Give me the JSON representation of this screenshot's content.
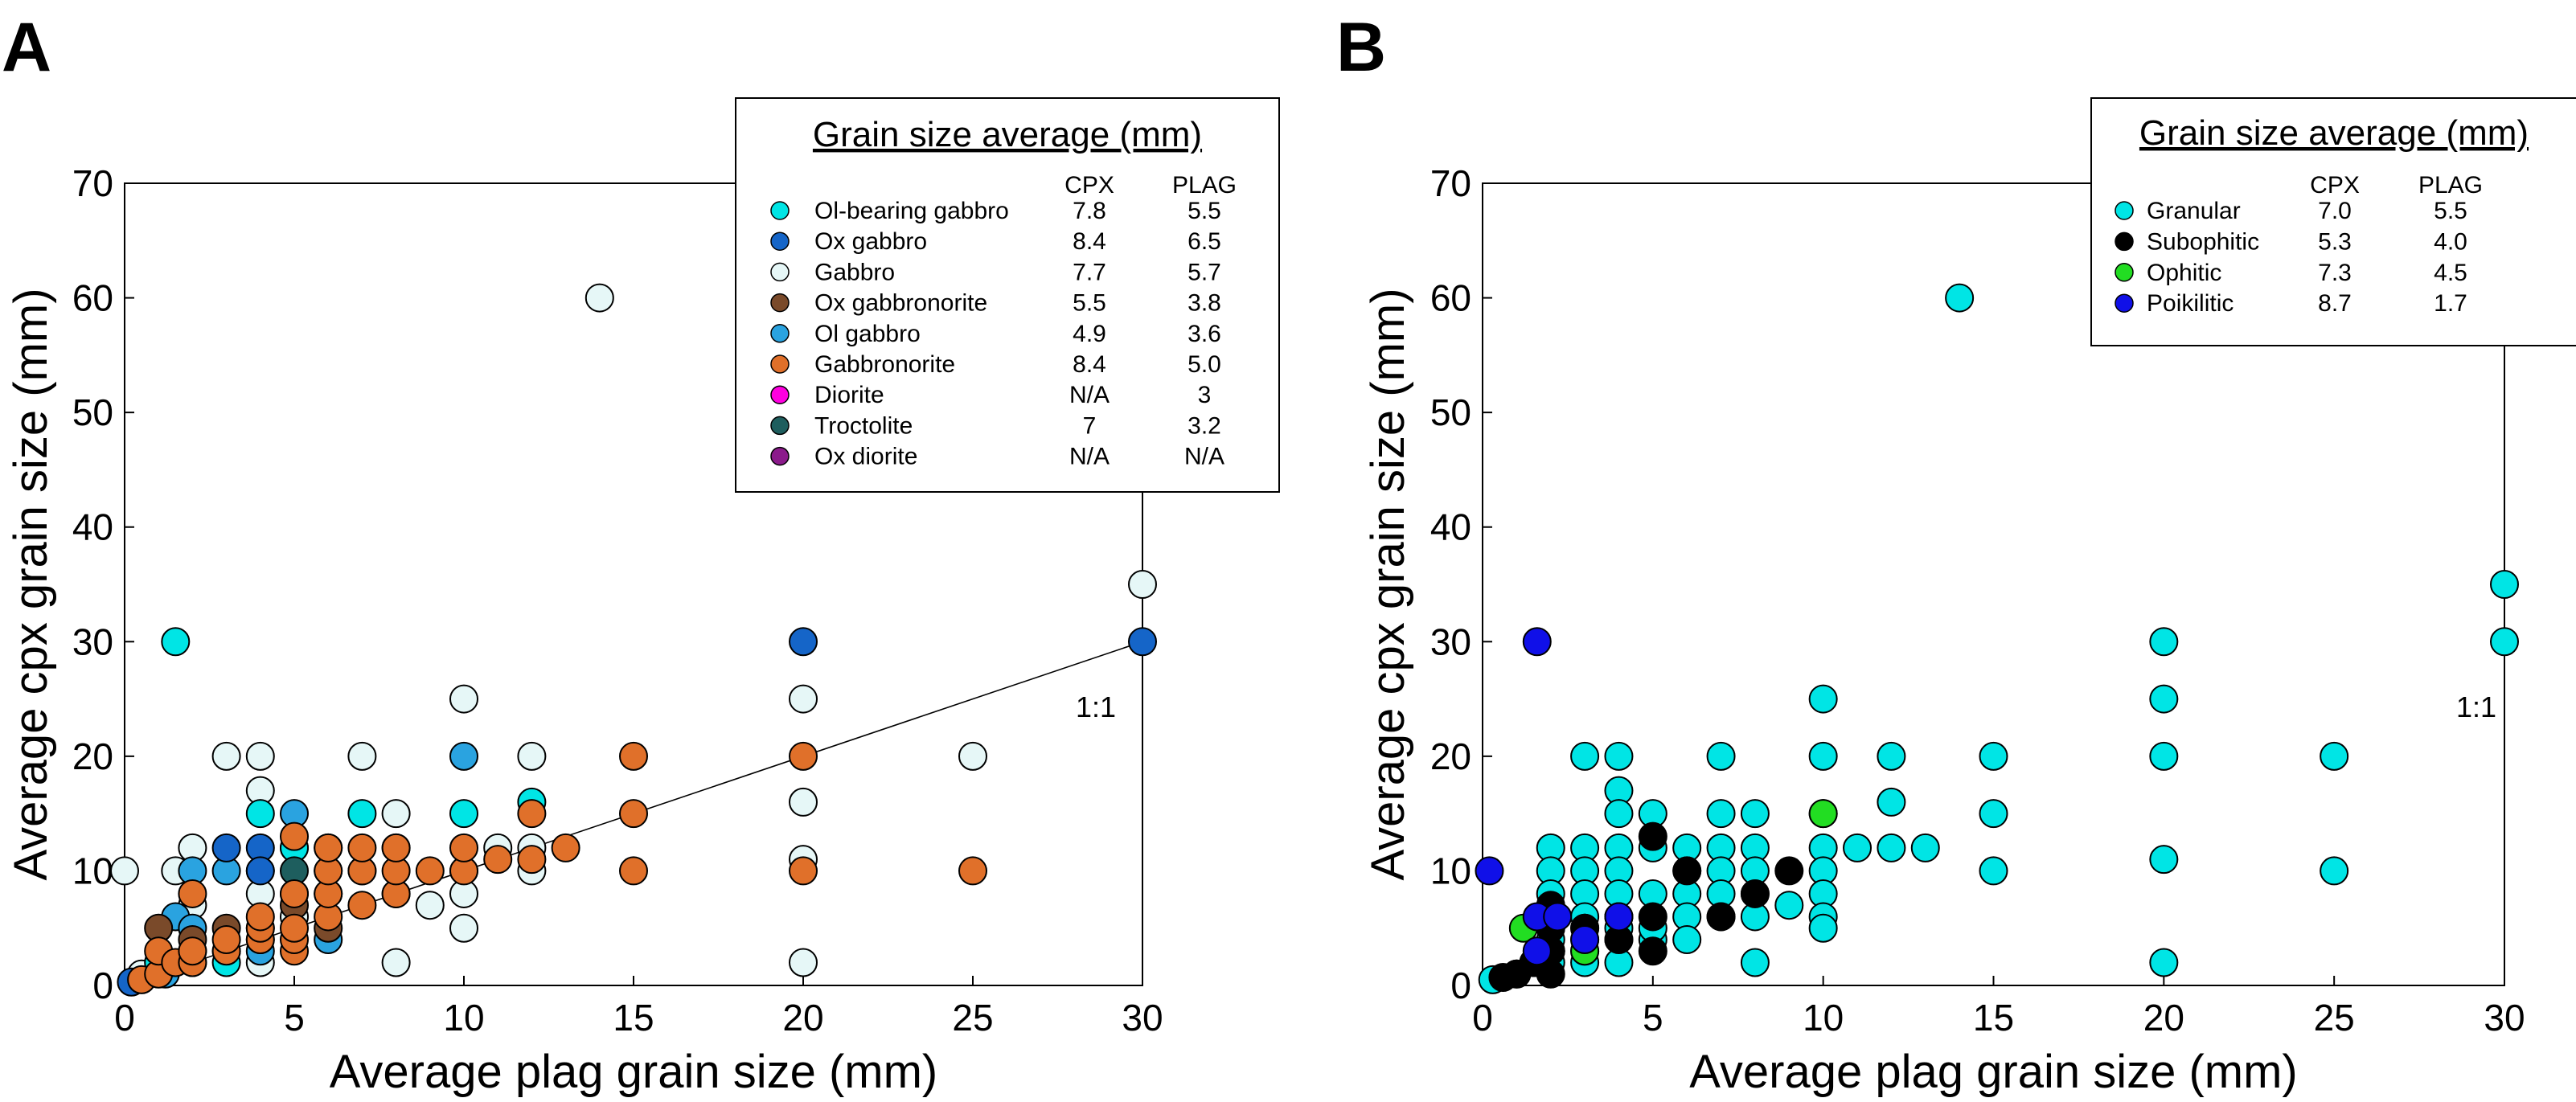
{
  "chart_data": [
    {
      "panel": "A",
      "type": "scatter",
      "xlabel": "Average plag grain size (mm)",
      "ylabel": "Average cpx grain size (mm)",
      "xlim": [
        0,
        30
      ],
      "ylim": [
        0,
        70
      ],
      "xticks": [
        0,
        5,
        10,
        15,
        20,
        25,
        30
      ],
      "yticks": [
        0,
        10,
        20,
        30,
        40,
        50,
        60,
        70
      ],
      "grid": false,
      "reference_line": {
        "label": "1:1",
        "from": [
          0,
          0
        ],
        "to": [
          30,
          30
        ]
      },
      "legend": {
        "title": "Grain size average (mm)",
        "placement": "top-right",
        "columns": [
          "CPX",
          "PLAG"
        ],
        "entries": [
          {
            "name": "Ol-bearing gabbro",
            "color": "#00e5e5",
            "cpx": "7.8",
            "plag": "5.5"
          },
          {
            "name": "Ox gabbro",
            "color": "#1565c8",
            "cpx": "8.4",
            "plag": "6.5"
          },
          {
            "name": "Gabbro",
            "color": "#e6f7f7",
            "cpx": "7.7",
            "plag": "5.7"
          },
          {
            "name": "Ox gabbronorite",
            "color": "#7a4a2a",
            "cpx": "5.5",
            "plag": "3.8"
          },
          {
            "name": "Ol gabbro",
            "color": "#2aa3e0",
            "cpx": "4.9",
            "plag": "3.6"
          },
          {
            "name": "Gabbronorite",
            "color": "#e0702a",
            "cpx": "8.4",
            "plag": "5.0"
          },
          {
            "name": "Diorite",
            "color": "#ff00e0",
            "cpx": "N/A",
            "plag": "3"
          },
          {
            "name": "Troctolite",
            "color": "#1e5e5e",
            "cpx": "7",
            "plag": "3.2"
          },
          {
            "name": "Ox diorite",
            "color": "#8b1a8b",
            "cpx": "N/A",
            "plag": "N/A"
          }
        ]
      },
      "series": [
        {
          "name": "Gabbro",
          "color": "#e6f7f7",
          "points": [
            [
              0,
              10
            ],
            [
              14,
              60
            ],
            [
              30,
              35
            ],
            [
              1.5,
              10
            ],
            [
              2,
              12
            ],
            [
              3,
              20
            ],
            [
              4,
              20
            ],
            [
              4,
              17
            ],
            [
              4,
              10
            ],
            [
              4,
              8
            ],
            [
              4,
              5
            ],
            [
              4,
              2
            ],
            [
              5,
              8
            ],
            [
              5,
              6
            ],
            [
              6,
              12
            ],
            [
              6,
              10
            ],
            [
              7,
              20
            ],
            [
              7,
              10
            ],
            [
              8,
              15
            ],
            [
              8,
              12
            ],
            [
              8,
              8
            ],
            [
              8,
              2
            ],
            [
              9,
              7
            ],
            [
              10,
              25
            ],
            [
              10,
              10
            ],
            [
              10,
              8
            ],
            [
              10,
              5
            ],
            [
              11,
              12
            ],
            [
              12,
              20
            ],
            [
              12,
              12
            ],
            [
              12,
              10
            ],
            [
              20,
              25
            ],
            [
              20,
              16
            ],
            [
              20,
              11
            ],
            [
              20,
              2
            ],
            [
              25,
              20
            ],
            [
              2,
              7
            ],
            [
              3,
              3
            ],
            [
              0.5,
              1
            ],
            [
              6,
              8
            ],
            [
              5,
              12
            ]
          ]
        },
        {
          "name": "Ol-bearing gabbro",
          "color": "#00e5e5",
          "points": [
            [
              1.5,
              30
            ],
            [
              4,
              15
            ],
            [
              5,
              12
            ],
            [
              7,
              15
            ],
            [
              10,
              15
            ],
            [
              12,
              16
            ],
            [
              2,
              3
            ],
            [
              3,
              2
            ],
            [
              1,
              2
            ]
          ]
        },
        {
          "name": "Ol gabbro",
          "color": "#2aa3e0",
          "points": [
            [
              1.5,
              6
            ],
            [
              2,
              10
            ],
            [
              2,
              5
            ],
            [
              3,
              10
            ],
            [
              4,
              3
            ],
            [
              5,
              15
            ],
            [
              6,
              4
            ],
            [
              10,
              20
            ],
            [
              2,
              2
            ],
            [
              1.2,
              1
            ]
          ]
        },
        {
          "name": "Ox gabbro",
          "color": "#1565c8",
          "points": [
            [
              3,
              12
            ],
            [
              4,
              12
            ],
            [
              4,
              10
            ],
            [
              20,
              30
            ],
            [
              30,
              30
            ],
            [
              0.2,
              0.3
            ]
          ]
        },
        {
          "name": "Ox gabbronorite",
          "color": "#7a4a2a",
          "points": [
            [
              1,
              5
            ],
            [
              2,
              4
            ],
            [
              3,
              5
            ],
            [
              5,
              7
            ],
            [
              6,
              5
            ]
          ]
        },
        {
          "name": "Troctolite",
          "color": "#1e5e5e",
          "points": [
            [
              4,
              4
            ],
            [
              5,
              10
            ]
          ]
        },
        {
          "name": "Gabbronorite",
          "color": "#e0702a",
          "points": [
            [
              0.5,
              0.5
            ],
            [
              1,
              1
            ],
            [
              1,
              3
            ],
            [
              1.5,
              2
            ],
            [
              2,
              2
            ],
            [
              2,
              3
            ],
            [
              2,
              8
            ],
            [
              3,
              3
            ],
            [
              3,
              4
            ],
            [
              4,
              4
            ],
            [
              4,
              5
            ],
            [
              4,
              6
            ],
            [
              5,
              3
            ],
            [
              5,
              4
            ],
            [
              5,
              5
            ],
            [
              5,
              8
            ],
            [
              5,
              13
            ],
            [
              6,
              6
            ],
            [
              6,
              8
            ],
            [
              6,
              10
            ],
            [
              6,
              12
            ],
            [
              7,
              7
            ],
            [
              7,
              10
            ],
            [
              7,
              12
            ],
            [
              8,
              8
            ],
            [
              8,
              10
            ],
            [
              8,
              12
            ],
            [
              9,
              10
            ],
            [
              10,
              10
            ],
            [
              10,
              12
            ],
            [
              11,
              11
            ],
            [
              12,
              11
            ],
            [
              12,
              15
            ],
            [
              13,
              12
            ],
            [
              15,
              10
            ],
            [
              15,
              15
            ],
            [
              15,
              20
            ],
            [
              20,
              20
            ],
            [
              20,
              10
            ],
            [
              25,
              10
            ]
          ]
        }
      ]
    },
    {
      "panel": "B",
      "type": "scatter",
      "xlabel": "Average plag grain size (mm)",
      "ylabel": "Average cpx grain size (mm)",
      "xlim": [
        0,
        30
      ],
      "ylim": [
        0,
        70
      ],
      "xticks": [
        0,
        5,
        10,
        15,
        20,
        25,
        30
      ],
      "yticks": [
        0,
        10,
        20,
        30,
        40,
        50,
        60,
        70
      ],
      "grid": false,
      "annotation": "1:1",
      "legend": {
        "title": "Grain size average (mm)",
        "placement": "top-right",
        "columns": [
          "CPX",
          "PLAG"
        ],
        "entries": [
          {
            "name": "Granular",
            "color": "#00e5e5",
            "cpx": "7.0",
            "plag": "5.5"
          },
          {
            "name": "Subophitic",
            "color": "#000000",
            "cpx": "5.3",
            "plag": "4.0"
          },
          {
            "name": "Ophitic",
            "color": "#22dd22",
            "cpx": "7.3",
            "plag": "4.5"
          },
          {
            "name": "Poikilitic",
            "color": "#1010e8",
            "cpx": "8.7",
            "plag": "1.7"
          }
        ]
      },
      "series": [
        {
          "name": "Granular",
          "color": "#00e5e5",
          "points": [
            [
              14,
              60
            ],
            [
              30,
              35
            ],
            [
              30,
              30
            ],
            [
              10,
              25
            ],
            [
              20,
              25
            ],
            [
              3,
              20
            ],
            [
              4,
              20
            ],
            [
              7,
              20
            ],
            [
              10,
              20
            ],
            [
              12,
              20
            ],
            [
              15,
              20
            ],
            [
              20,
              20
            ],
            [
              20,
              30
            ],
            [
              25,
              20
            ],
            [
              4,
              17
            ],
            [
              4,
              15
            ],
            [
              5,
              15
            ],
            [
              7,
              15
            ],
            [
              8,
              15
            ],
            [
              10,
              15
            ],
            [
              12,
              16
            ],
            [
              15,
              15
            ],
            [
              2,
              12
            ],
            [
              3,
              12
            ],
            [
              4,
              12
            ],
            [
              5,
              12
            ],
            [
              6,
              12
            ],
            [
              7,
              12
            ],
            [
              8,
              12
            ],
            [
              10,
              12
            ],
            [
              11,
              12
            ],
            [
              12,
              12
            ],
            [
              13,
              12
            ],
            [
              2,
              10
            ],
            [
              3,
              10
            ],
            [
              4,
              10
            ],
            [
              6,
              10
            ],
            [
              7,
              10
            ],
            [
              8,
              10
            ],
            [
              10,
              10
            ],
            [
              15,
              10
            ],
            [
              20,
              11
            ],
            [
              25,
              10
            ],
            [
              2,
              8
            ],
            [
              3,
              8
            ],
            [
              4,
              8
            ],
            [
              5,
              8
            ],
            [
              6,
              8
            ],
            [
              7,
              8
            ],
            [
              8,
              8
            ],
            [
              10,
              8
            ],
            [
              9,
              7
            ],
            [
              2,
              6
            ],
            [
              3,
              6
            ],
            [
              4,
              6
            ],
            [
              6,
              6
            ],
            [
              7,
              6
            ],
            [
              8,
              6
            ],
            [
              10,
              6
            ],
            [
              2,
              4
            ],
            [
              3,
              4
            ],
            [
              4,
              4
            ],
            [
              5,
              4
            ],
            [
              6,
              4
            ],
            [
              10,
              5
            ],
            [
              1.5,
              2
            ],
            [
              2,
              2
            ],
            [
              3,
              2
            ],
            [
              4,
              2
            ],
            [
              8,
              2
            ],
            [
              20,
              2
            ],
            [
              0.3,
              0.5
            ],
            [
              1,
              1
            ],
            [
              2,
              3
            ],
            [
              3,
              3
            ],
            [
              4,
              5
            ],
            [
              5,
              5
            ],
            [
              3,
              5
            ],
            [
              2,
              5
            ]
          ]
        },
        {
          "name": "Subophitic",
          "color": "#000000",
          "points": [
            [
              0.6,
              0.7
            ],
            [
              1,
              1
            ],
            [
              1.5,
              2
            ],
            [
              2,
              3
            ],
            [
              2,
              5
            ],
            [
              2,
              7
            ],
            [
              3,
              5
            ],
            [
              4,
              4
            ],
            [
              4,
              6
            ],
            [
              5,
              3
            ],
            [
              5,
              6
            ],
            [
              5,
              13
            ],
            [
              6,
              10
            ],
            [
              7,
              6
            ],
            [
              8,
              8
            ],
            [
              9,
              10
            ],
            [
              2,
              1
            ]
          ]
        },
        {
          "name": "Ophitic",
          "color": "#22dd22",
          "points": [
            [
              1.2,
              5
            ],
            [
              3,
              3
            ],
            [
              10,
              15
            ]
          ]
        },
        {
          "name": "Poikilitic",
          "color": "#1010e8",
          "points": [
            [
              0.2,
              10
            ],
            [
              1.6,
              30
            ],
            [
              1.6,
              6
            ],
            [
              2.2,
              6
            ],
            [
              1.6,
              3
            ],
            [
              3,
              4
            ],
            [
              4,
              6
            ]
          ]
        }
      ]
    }
  ]
}
